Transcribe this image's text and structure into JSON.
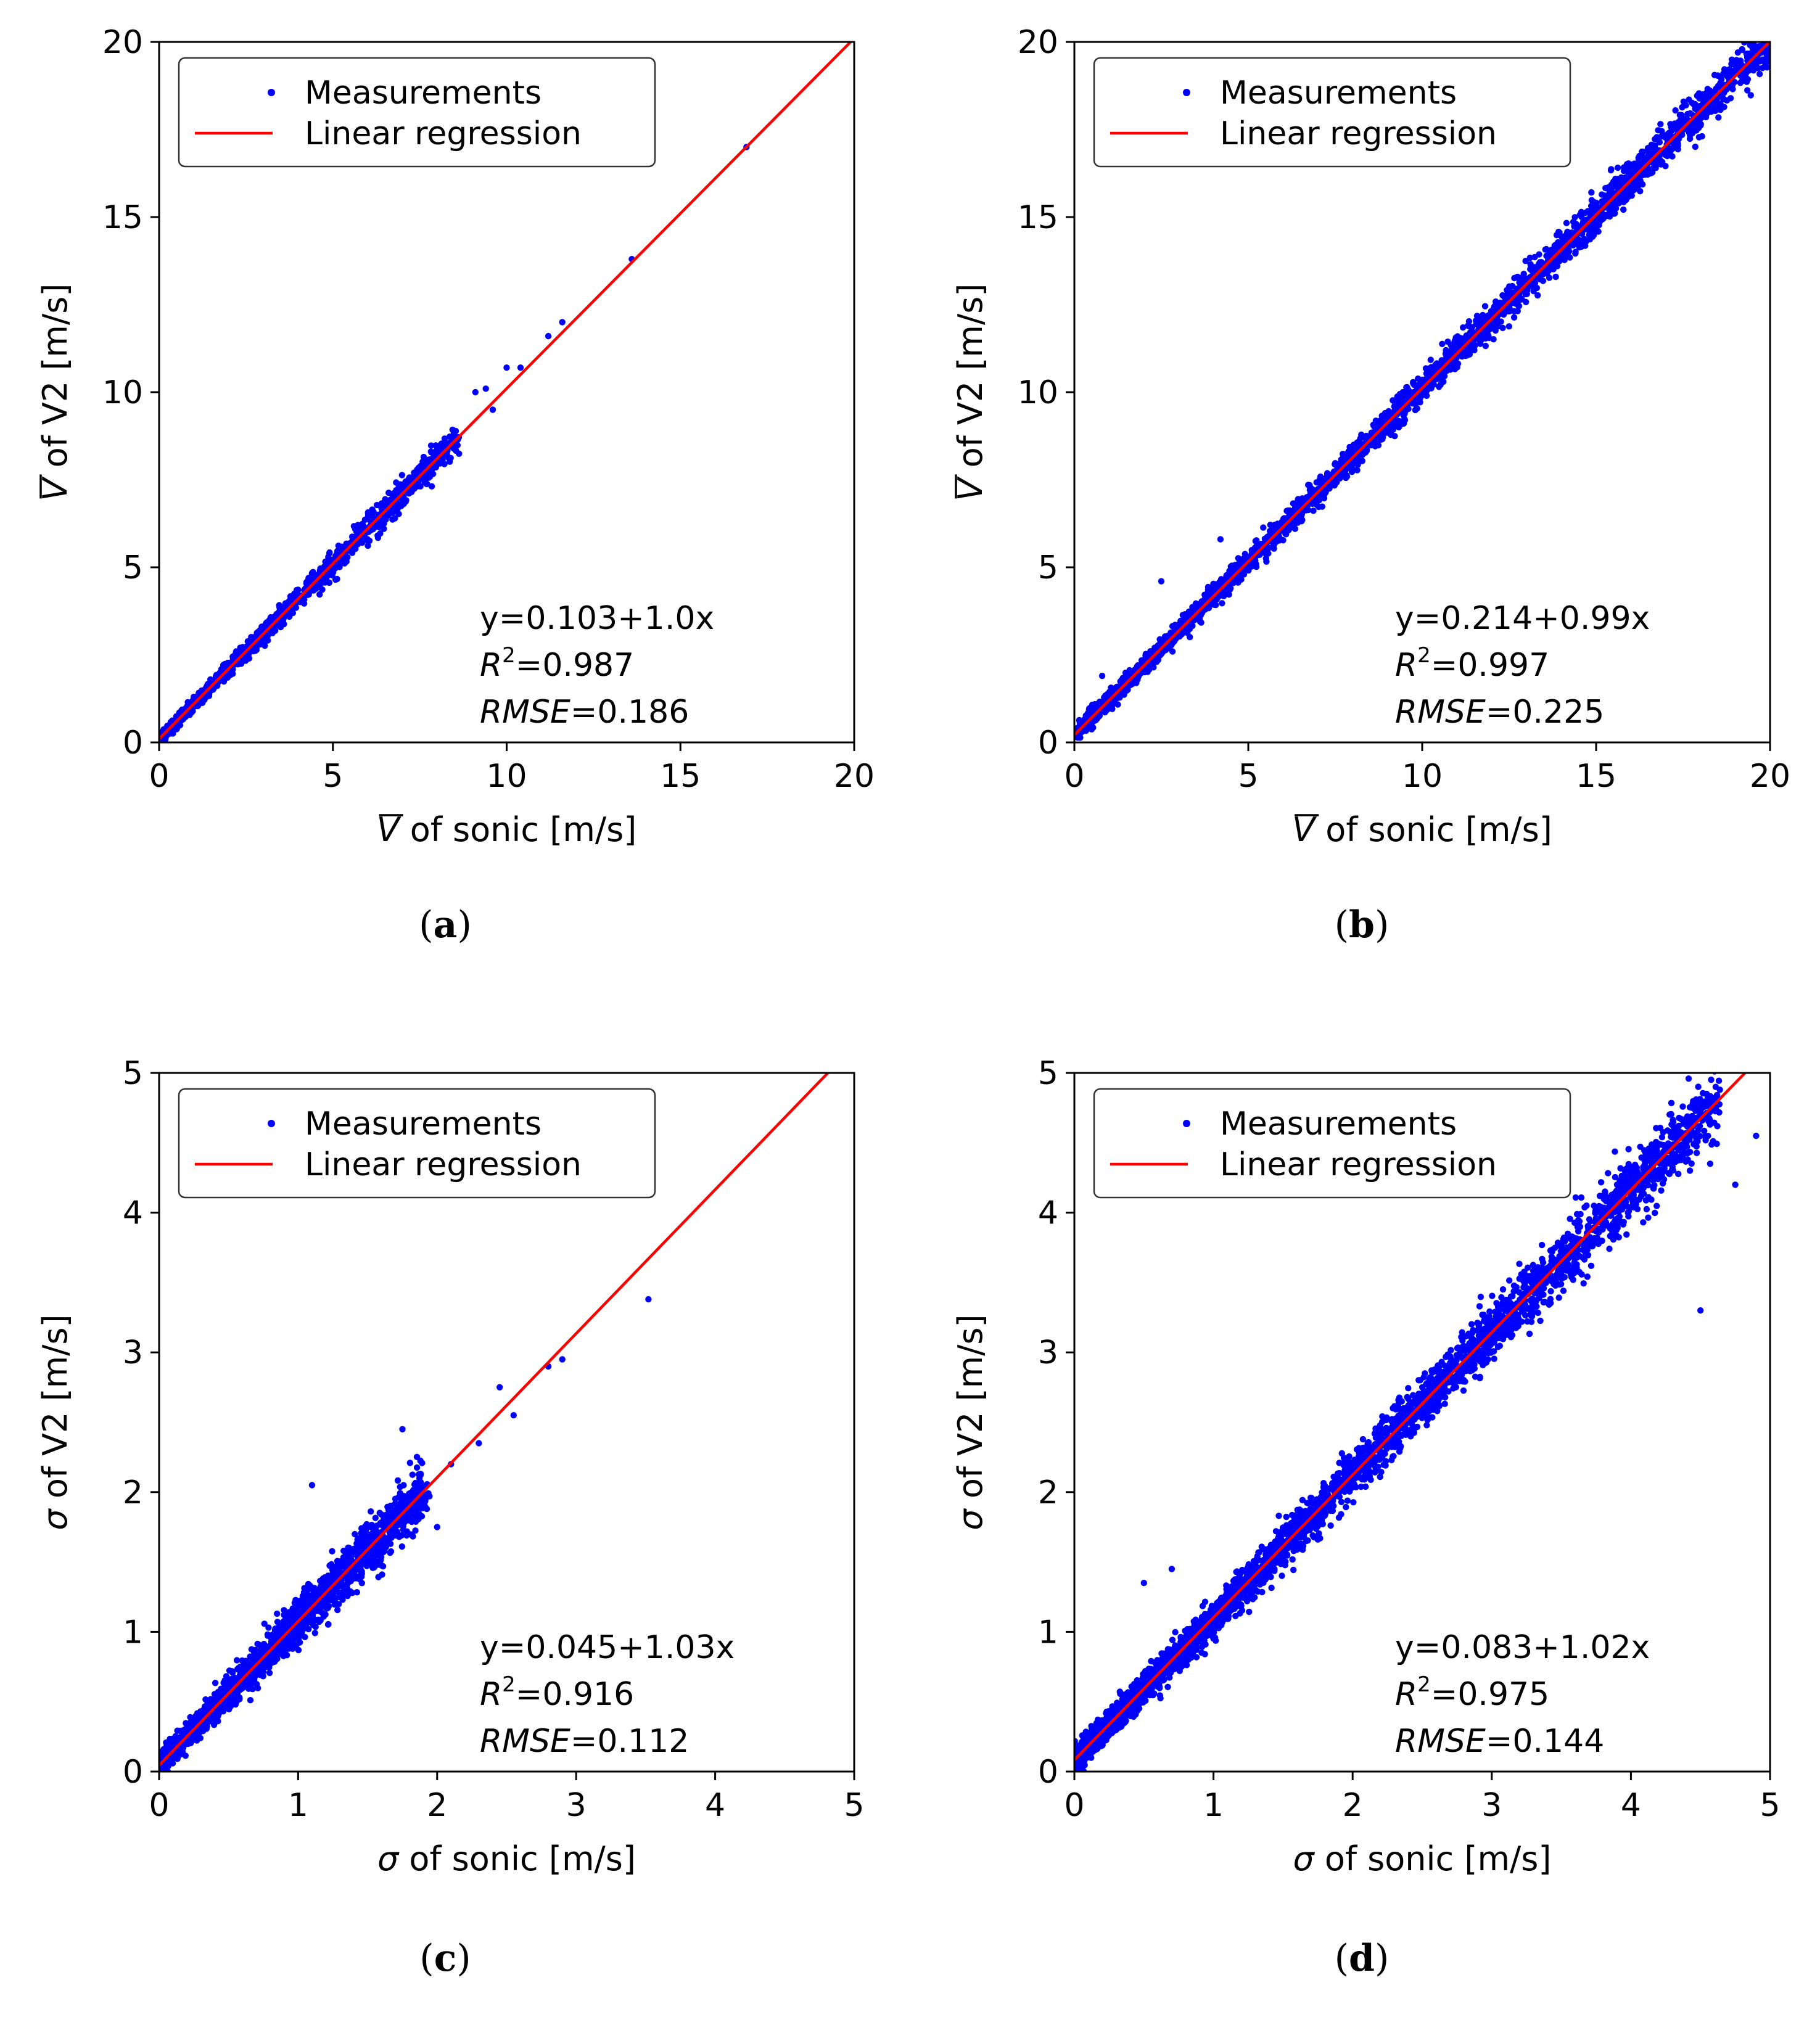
{
  "figure": {
    "colors": {
      "points": "#0000ff",
      "line": "#ff0000",
      "axes": "#000000"
    },
    "legend": {
      "measurements": "Measurements",
      "regression": "Linear regression"
    }
  },
  "chart_data": [
    {
      "id": "a",
      "type": "scatter",
      "caption": {
        "open": "(",
        "letter": "a",
        "close": ")"
      },
      "xlabel": {
        "symbol": "V",
        "overbar": true,
        "text": "of  sonic [m/s]"
      },
      "ylabel": {
        "symbol": "V",
        "overbar": true,
        "text": "of  V2 [m/s]"
      },
      "xlim": [
        0,
        20
      ],
      "ylim": [
        0,
        20
      ],
      "xticks": [
        "0",
        "5",
        "10",
        "15",
        "20"
      ],
      "yticks": [
        "0",
        "5",
        "10",
        "15",
        "20"
      ],
      "regression": {
        "intercept": 0.103,
        "slope": 1.0
      },
      "stats": {
        "equation": "y=0.103+1.0x",
        "r2_label": "R",
        "r2_sup": "2",
        "r2_value": "=0.987",
        "rmse_label": "RMSE",
        "rmse_value": "=0.186"
      },
      "sample": {
        "dense_max": 8.5,
        "n_dense": 1400,
        "spread": 0.14,
        "outliers": [
          [
            9.1,
            10.0
          ],
          [
            9.4,
            10.1
          ],
          [
            9.6,
            9.5
          ],
          [
            10.0,
            10.7
          ],
          [
            10.4,
            10.7
          ],
          [
            11.2,
            11.6
          ],
          [
            11.6,
            12.0
          ],
          [
            13.6,
            13.8
          ],
          [
            16.9,
            17.0
          ]
        ]
      }
    },
    {
      "id": "b",
      "type": "scatter",
      "caption": {
        "open": "(",
        "letter": "b",
        "close": ")"
      },
      "xlabel": {
        "symbol": "V",
        "overbar": true,
        "text": "of  sonic [m/s]"
      },
      "ylabel": {
        "symbol": "V",
        "overbar": true,
        "text": "of  V2 [m/s]"
      },
      "xlim": [
        0,
        20
      ],
      "ylim": [
        0,
        20
      ],
      "xticks": [
        "0",
        "5",
        "10",
        "15",
        "20"
      ],
      "yticks": [
        "0",
        "5",
        "10",
        "15",
        "20"
      ],
      "regression": {
        "intercept": 0.214,
        "slope": 0.99
      },
      "stats": {
        "equation": "y=0.214+0.99x",
        "r2_label": "R",
        "r2_sup": "2",
        "r2_value": "=0.997",
        "rmse_label": "RMSE",
        "rmse_value": "=0.225"
      },
      "sample": {
        "dense_max": 20,
        "n_dense": 3200,
        "spread": 0.2,
        "outliers": [
          [
            2.5,
            4.6
          ],
          [
            0.8,
            1.9
          ],
          [
            4.2,
            5.8
          ]
        ]
      }
    },
    {
      "id": "c",
      "type": "scatter",
      "caption": {
        "open": "(",
        "letter": "c",
        "close": ")"
      },
      "xlabel": {
        "symbol": "σ",
        "overbar": false,
        "text": "of  sonic [m/s]"
      },
      "ylabel": {
        "symbol": "σ",
        "overbar": false,
        "text": "of  V2 [m/s]"
      },
      "xlim": [
        0,
        5
      ],
      "ylim": [
        0,
        5
      ],
      "xticks": [
        "0",
        "1",
        "2",
        "3",
        "4",
        "5"
      ],
      "yticks": [
        "0",
        "1",
        "2",
        "3",
        "4",
        "5"
      ],
      "regression": {
        "intercept": 0.045,
        "slope": 1.03
      },
      "stats": {
        "equation": "y=0.045+1.03x",
        "r2_label": "R",
        "r2_sup": "2",
        "r2_value": "=0.916",
        "rmse_label": "RMSE",
        "rmse_value": "=0.112"
      },
      "sample": {
        "dense_max": 1.9,
        "n_dense": 2200,
        "spread": 0.11,
        "outliers": [
          [
            1.1,
            2.05
          ],
          [
            1.75,
            2.45
          ],
          [
            2.0,
            1.75
          ],
          [
            2.1,
            2.2
          ],
          [
            2.3,
            2.35
          ],
          [
            2.45,
            2.75
          ],
          [
            2.55,
            2.55
          ],
          [
            2.8,
            2.9
          ],
          [
            2.9,
            2.95
          ],
          [
            3.52,
            3.38
          ]
        ]
      }
    },
    {
      "id": "d",
      "type": "scatter",
      "caption": {
        "open": "(",
        "letter": "d",
        "close": ")"
      },
      "xlabel": {
        "symbol": "σ",
        "overbar": false,
        "text": "of  sonic [m/s]"
      },
      "ylabel": {
        "symbol": "σ",
        "overbar": false,
        "text": "of  V2 [m/s]"
      },
      "xlim": [
        0,
        5
      ],
      "ylim": [
        0,
        5
      ],
      "xticks": [
        "0",
        "1",
        "2",
        "3",
        "4",
        "5"
      ],
      "yticks": [
        "0",
        "1",
        "2",
        "3",
        "4",
        "5"
      ],
      "regression": {
        "intercept": 0.083,
        "slope": 1.02
      },
      "stats": {
        "equation": "y=0.083+1.02x",
        "r2_label": "R",
        "r2_sup": "2",
        "r2_value": "=0.975",
        "rmse_label": "RMSE",
        "rmse_value": "=0.144"
      },
      "sample": {
        "dense_max": 4.6,
        "n_dense": 3600,
        "spread": 0.13,
        "outliers": [
          [
            4.5,
            3.3
          ],
          [
            4.9,
            4.55
          ],
          [
            4.75,
            4.2
          ],
          [
            0.5,
            1.35
          ],
          [
            0.7,
            1.45
          ]
        ]
      }
    }
  ]
}
